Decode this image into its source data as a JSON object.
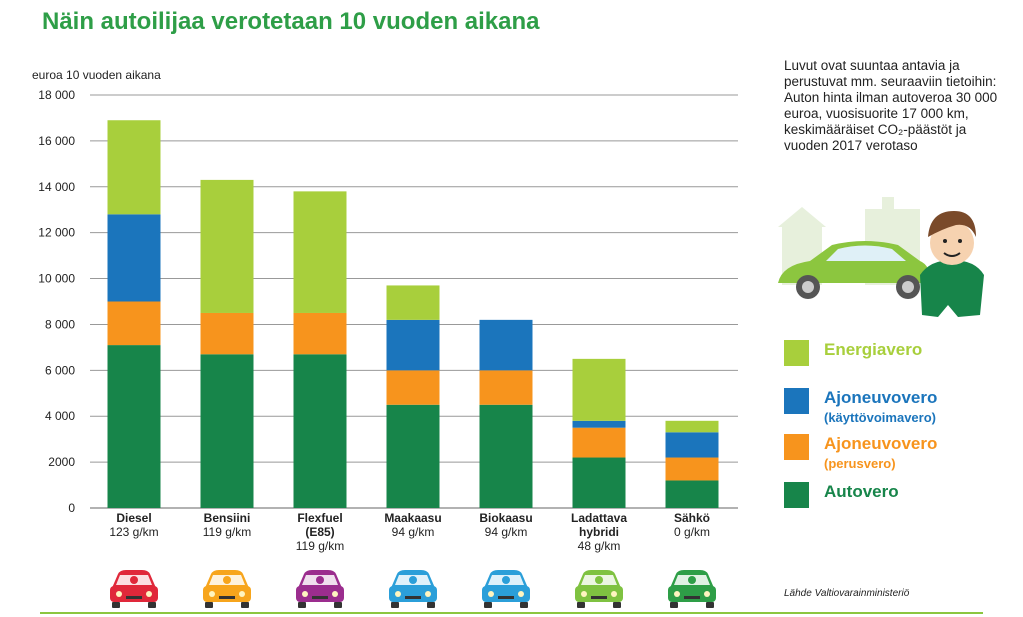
{
  "title": "Näin autoilijaa verotetaan 10 vuoden aikana",
  "note_text": "Luvut ovat suuntaa antavia ja perustuvat mm. seuraaviin tietoihin: Auton hinta ilman autoveroa 30 000 euroa, vuosisuorite 17 000 km, keskimääräiset CO₂-päästöt ja vuoden 2017 verotaso",
  "source": "Lähde Valtiovarainministeriö",
  "colors": {
    "title": "#2e9e47",
    "energiavero": "#a8cf3c",
    "kayttovoimavero": "#1b75bc",
    "perusvero": "#f7941d",
    "autovero": "#17854a",
    "grid": "#999999"
  },
  "car_colors": [
    "#e0283a",
    "#f7a51c",
    "#9b2d8e",
    "#2b9fd9",
    "#2b9fd9",
    "#7fc241",
    "#2e9e47"
  ],
  "car_icons": [
    "drop-icon",
    "drop-icon",
    "drops-icon",
    "flame-icon",
    "leaf-icon",
    "plug-icon",
    "bolt-icon"
  ],
  "legend": [
    {
      "label": "Energiavero",
      "sub": "",
      "color": "#a8cf3c"
    },
    {
      "label": "Ajoneuvovero",
      "sub": "(käyttövoimavero)",
      "color": "#1b75bc"
    },
    {
      "label": "Ajoneuvovero",
      "sub": "(perusvero)",
      "color": "#f7941d"
    },
    {
      "label": "Autovero",
      "sub": "",
      "color": "#17854a"
    }
  ],
  "chart_data": {
    "type": "bar",
    "stacked": true,
    "title": "Näin autoilijaa verotetaan 10 vuoden aikana",
    "ylabel": "euroa 10 vuoden aikana",
    "xlabel": "",
    "ylim": [
      0,
      18000
    ],
    "yticks": [
      0,
      2000,
      4000,
      6000,
      8000,
      10000,
      12000,
      14000,
      16000,
      18000
    ],
    "ytick_labels": [
      "0",
      "2000",
      "4 000",
      "6 000",
      "8 000",
      "10 000",
      "12 000",
      "14 000",
      "16 000",
      "18 000"
    ],
    "grid": true,
    "categories": [
      {
        "name": [
          "Diesel"
        ],
        "emission": "123 g/km"
      },
      {
        "name": [
          "Bensiini"
        ],
        "emission": "119 g/km"
      },
      {
        "name": [
          "Flexfuel",
          "(E85)"
        ],
        "emission": "119 g/km"
      },
      {
        "name": [
          "Maakaasu"
        ],
        "emission": "94 g/km"
      },
      {
        "name": [
          "Biokaasu"
        ],
        "emission": "94 g/km"
      },
      {
        "name": [
          "Ladattava",
          "hybridi"
        ],
        "emission": "48 g/km"
      },
      {
        "name": [
          "Sähkö"
        ],
        "emission": "0 g/km"
      }
    ],
    "series": [
      {
        "name": "Autovero",
        "values": [
          7100,
          6700,
          6700,
          4500,
          4500,
          2200,
          1200
        ]
      },
      {
        "name": "Ajoneuvovero (perusvero)",
        "values": [
          1900,
          1800,
          1800,
          1500,
          1500,
          1300,
          1000
        ]
      },
      {
        "name": "Ajoneuvovero (käyttövoimavero)",
        "values": [
          3800,
          0,
          0,
          2200,
          2200,
          300,
          1100
        ]
      },
      {
        "name": "Energiavero",
        "values": [
          4100,
          5800,
          5300,
          1500,
          0,
          2700,
          500
        ]
      }
    ]
  }
}
